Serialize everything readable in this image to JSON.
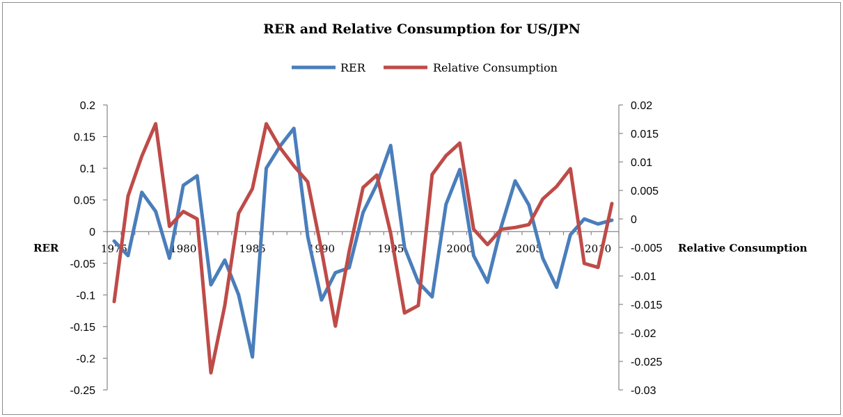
{
  "chart_data": {
    "type": "line",
    "title": "RER and Relative Consumption for US/JPN",
    "ylabel": "RER",
    "y2label": "Relative Consumption",
    "ylim": [
      -0.25,
      0.2
    ],
    "y2lim": [
      -0.03,
      0.02
    ],
    "yticks": [
      "0.2",
      "0.15",
      "0.1",
      "0.05",
      "0",
      "-0.05",
      "-0.1",
      "-0.15",
      "-0.2",
      "-0.25"
    ],
    "y2ticks": [
      "0.02",
      "0.015",
      "0.01",
      "0.005",
      "0",
      "-0.005",
      "-0.01",
      "-0.015",
      "-0.02",
      "-0.025",
      "-0.03"
    ],
    "xtick_labels": [
      "1975",
      "1980",
      "1985",
      "1990",
      "1995",
      "2000",
      "2005",
      "2010"
    ],
    "grid": false,
    "legend_position": "top",
    "x": [
      1975,
      1976,
      1977,
      1978,
      1979,
      1980,
      1981,
      1982,
      1983,
      1984,
      1985,
      1986,
      1987,
      1988,
      1989,
      1990,
      1991,
      1992,
      1993,
      1994,
      1995,
      1996,
      1997,
      1998,
      1999,
      2000,
      2001,
      2002,
      2003,
      2004,
      2005,
      2006,
      2007,
      2008,
      2009,
      2010,
      2011
    ],
    "series": [
      {
        "name": "RER",
        "axis": "left",
        "color": "#4a7ebb",
        "values": [
          -0.015,
          -0.038,
          0.062,
          0.032,
          -0.042,
          0.073,
          0.088,
          -0.084,
          -0.045,
          -0.1,
          -0.198,
          0.1,
          0.135,
          0.163,
          -0.008,
          -0.108,
          -0.065,
          -0.057,
          0.03,
          0.075,
          0.136,
          -0.025,
          -0.08,
          -0.103,
          0.043,
          0.098,
          -0.038,
          -0.08,
          0.008,
          0.08,
          0.042,
          -0.042,
          -0.088,
          -0.005,
          0.02,
          0.012,
          0.018
        ]
      },
      {
        "name": "Relative Consumption",
        "axis": "right",
        "color": "#be4b48",
        "values": [
          -0.0145,
          0.004,
          0.011,
          0.0167,
          -0.0013,
          0.0013,
          0.0,
          -0.027,
          -0.0152,
          0.001,
          0.0053,
          0.0167,
          0.0125,
          0.0093,
          0.0065,
          -0.0055,
          -0.0188,
          -0.0057,
          0.0055,
          0.0077,
          -0.0025,
          -0.0165,
          -0.0152,
          0.0078,
          0.0111,
          0.0133,
          -0.0018,
          -0.0045,
          -0.0018,
          -0.0015,
          -0.001,
          0.0035,
          0.0057,
          0.0088,
          -0.0078,
          -0.0085,
          0.0027
        ]
      }
    ]
  }
}
